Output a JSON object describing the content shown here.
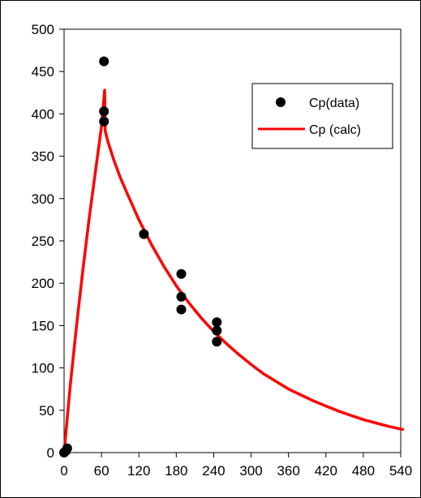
{
  "chart_data": {
    "type": "scatter",
    "title": "",
    "xlabel": "",
    "ylabel": "",
    "xlim": [
      0,
      540
    ],
    "ylim": [
      0,
      500
    ],
    "x_ticks": [
      0,
      60,
      120,
      180,
      240,
      300,
      360,
      420,
      480,
      540
    ],
    "y_ticks": [
      0,
      50,
      100,
      150,
      200,
      250,
      300,
      350,
      400,
      450,
      500
    ],
    "grid": false,
    "legend_position": "top-right",
    "series": [
      {
        "name": "Cp(data)",
        "kind": "scatter",
        "color": "#000000",
        "points": [
          [
            0,
            0
          ],
          [
            3,
            2
          ],
          [
            5,
            5
          ],
          [
            64,
            462
          ],
          [
            64,
            403
          ],
          [
            64,
            391
          ],
          [
            128,
            258
          ],
          [
            188,
            211
          ],
          [
            188,
            184
          ],
          [
            188,
            169
          ],
          [
            245,
            154
          ],
          [
            245,
            144
          ],
          [
            245,
            131
          ]
        ]
      },
      {
        "name": "Cp (calc)",
        "kind": "line",
        "color": "#ff0000",
        "points": [
          [
            0,
            0
          ],
          [
            10,
            80
          ],
          [
            20,
            150
          ],
          [
            30,
            215
          ],
          [
            40,
            275
          ],
          [
            50,
            330
          ],
          [
            60,
            385
          ],
          [
            65,
            428
          ],
          [
            66,
            380
          ],
          [
            70,
            368
          ],
          [
            80,
            345
          ],
          [
            90,
            325
          ],
          [
            100,
            308
          ],
          [
            120,
            275
          ],
          [
            140,
            246
          ],
          [
            160,
            220
          ],
          [
            180,
            197
          ],
          [
            200,
            177
          ],
          [
            220,
            159
          ],
          [
            240,
            143
          ],
          [
            260,
            129
          ],
          [
            280,
            116
          ],
          [
            300,
            104
          ],
          [
            320,
            93
          ],
          [
            340,
            84
          ],
          [
            360,
            75
          ],
          [
            380,
            68
          ],
          [
            400,
            61
          ],
          [
            420,
            55
          ],
          [
            440,
            49
          ],
          [
            460,
            44
          ],
          [
            480,
            39
          ],
          [
            500,
            35
          ],
          [
            520,
            31
          ],
          [
            545,
            27
          ]
        ]
      }
    ]
  }
}
